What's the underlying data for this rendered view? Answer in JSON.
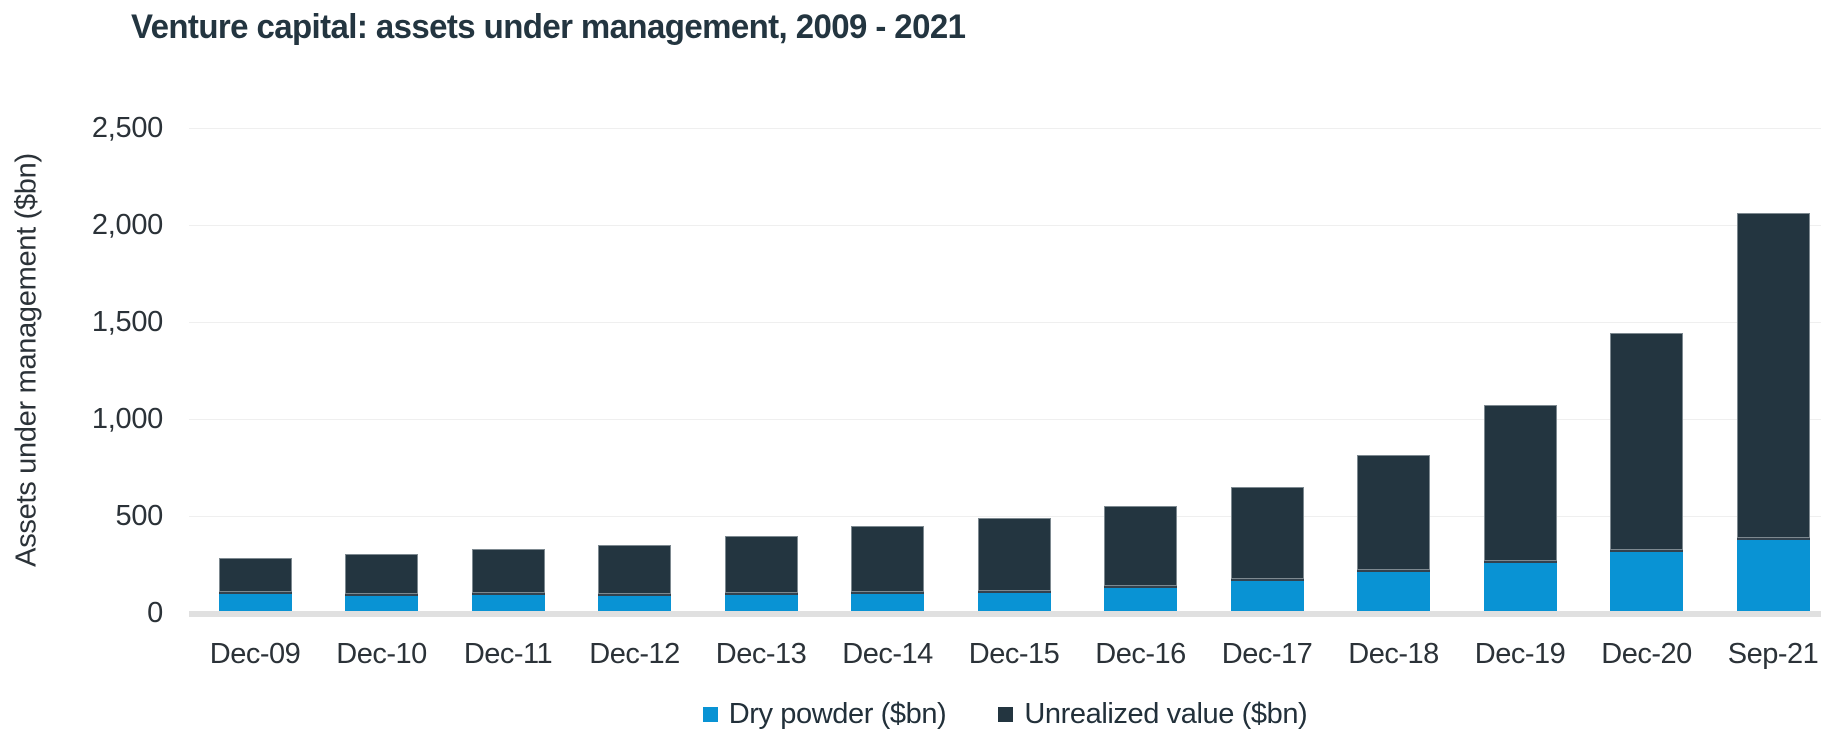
{
  "title": "Venture capital: assets under management, 2009 - 2021",
  "y_axis": {
    "label": "Assets under management ($bn)",
    "ticks": [
      {
        "label": "0",
        "value": 0
      },
      {
        "label": "500",
        "value": 500
      },
      {
        "label": "1,000",
        "value": 1000
      },
      {
        "label": "1,500",
        "value": 1500
      },
      {
        "label": "2,000",
        "value": 2000
      },
      {
        "label": "2,500",
        "value": 2500
      }
    ]
  },
  "colors": {
    "dry_powder": "#0993d4",
    "unrealized_value": "#233540",
    "gridline": "#efefef",
    "axis_line": "#e0e0e0",
    "title_text": "#233540",
    "tick_text": "#2b3238"
  },
  "chart_data": {
    "type": "bar",
    "stacked": true,
    "title": "Venture capital: assets under management, 2009 - 2021",
    "xlabel": "",
    "ylabel": "Assets under management ($bn)",
    "ylim": [
      0,
      2500
    ],
    "ytick_step": 500,
    "grid": true,
    "legend_position": "bottom",
    "categories": [
      "Dec-09",
      "Dec-10",
      "Dec-11",
      "Dec-12",
      "Dec-13",
      "Dec-14",
      "Dec-15",
      "Dec-16",
      "Dec-17",
      "Dec-18",
      "Dec-19",
      "Dec-20",
      "Sep-21"
    ],
    "series": [
      {
        "name": "Dry powder ($bn)",
        "color": "#0993d4",
        "values": [
          106,
          100,
          104,
          100,
          104,
          108,
          113,
          140,
          175,
          221,
          266,
          325,
          385
        ]
      },
      {
        "name": "Unrealized value ($bn)",
        "color": "#233540",
        "values": [
          179,
          202,
          226,
          250,
          295,
          340,
          375,
          409,
          475,
          594,
          804,
          1117,
          1677
        ]
      }
    ],
    "totals": [
      285,
      302,
      330,
      350,
      399,
      448,
      488,
      549,
      650,
      815,
      1070,
      1442,
      2062
    ]
  }
}
